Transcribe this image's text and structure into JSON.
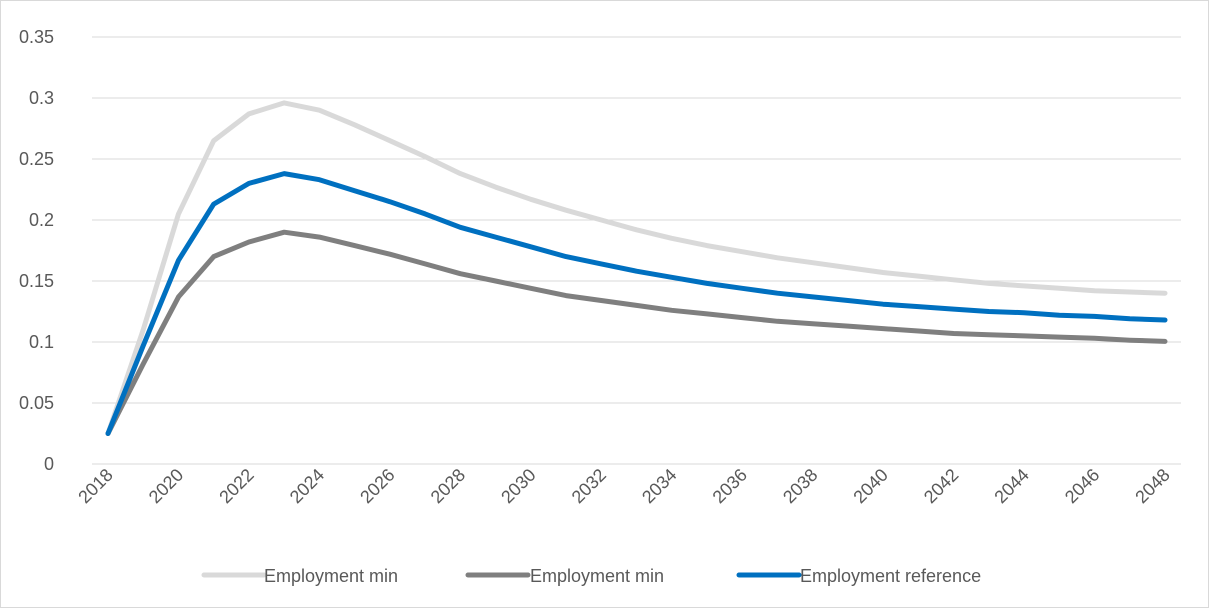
{
  "chart_data": {
    "type": "line",
    "title": "",
    "xlabel": "",
    "ylabel": "",
    "ylim": [
      0,
      0.35
    ],
    "yticks": [
      "0",
      "0.05",
      "0.1",
      "0.15",
      "0.2",
      "0.25",
      "0.3",
      "0.35"
    ],
    "xticks": [
      "2018",
      "2020",
      "2022",
      "2024",
      "2026",
      "2028",
      "2030",
      "2032",
      "2034",
      "2036",
      "2038",
      "2040",
      "2042",
      "2044",
      "2046",
      "2048"
    ],
    "grid": "horizontal",
    "legend_position": "bottom",
    "x": [
      2018,
      2019,
      2020,
      2021,
      2022,
      2023,
      2024,
      2025,
      2026,
      2027,
      2028,
      2029,
      2030,
      2031,
      2032,
      2033,
      2034,
      2035,
      2036,
      2037,
      2038,
      2039,
      2040,
      2041,
      2042,
      2043,
      2044,
      2045,
      2046,
      2047,
      2048
    ],
    "series": [
      {
        "name": "Employment min",
        "color": "#d9d9d9",
        "values": [
          0.025,
          0.11,
          0.205,
          0.265,
          0.287,
          0.296,
          0.29,
          0.278,
          0.265,
          0.252,
          0.238,
          0.227,
          0.217,
          0.208,
          0.2,
          0.192,
          0.185,
          0.179,
          0.174,
          0.169,
          0.165,
          0.161,
          0.157,
          0.154,
          0.151,
          0.148,
          0.146,
          0.144,
          0.142,
          0.141,
          0.14
        ]
      },
      {
        "name": "Employment min",
        "color": "#7f7f7f",
        "values": [
          0.025,
          0.082,
          0.137,
          0.17,
          0.182,
          0.19,
          0.186,
          0.179,
          0.172,
          0.164,
          0.156,
          0.15,
          0.144,
          0.138,
          0.134,
          0.13,
          0.126,
          0.123,
          0.12,
          0.117,
          0.115,
          0.113,
          0.111,
          0.109,
          0.107,
          0.106,
          0.105,
          0.104,
          0.103,
          0.1015,
          0.1005
        ]
      },
      {
        "name": "Employment reference",
        "color": "#0070c0",
        "values": [
          0.025,
          0.097,
          0.167,
          0.213,
          0.23,
          0.238,
          0.233,
          0.224,
          0.215,
          0.205,
          0.194,
          0.186,
          0.178,
          0.17,
          0.164,
          0.158,
          0.153,
          0.148,
          0.144,
          0.14,
          0.137,
          0.134,
          0.131,
          0.129,
          0.127,
          0.125,
          0.124,
          0.122,
          0.121,
          0.119,
          0.118
        ]
      }
    ]
  }
}
